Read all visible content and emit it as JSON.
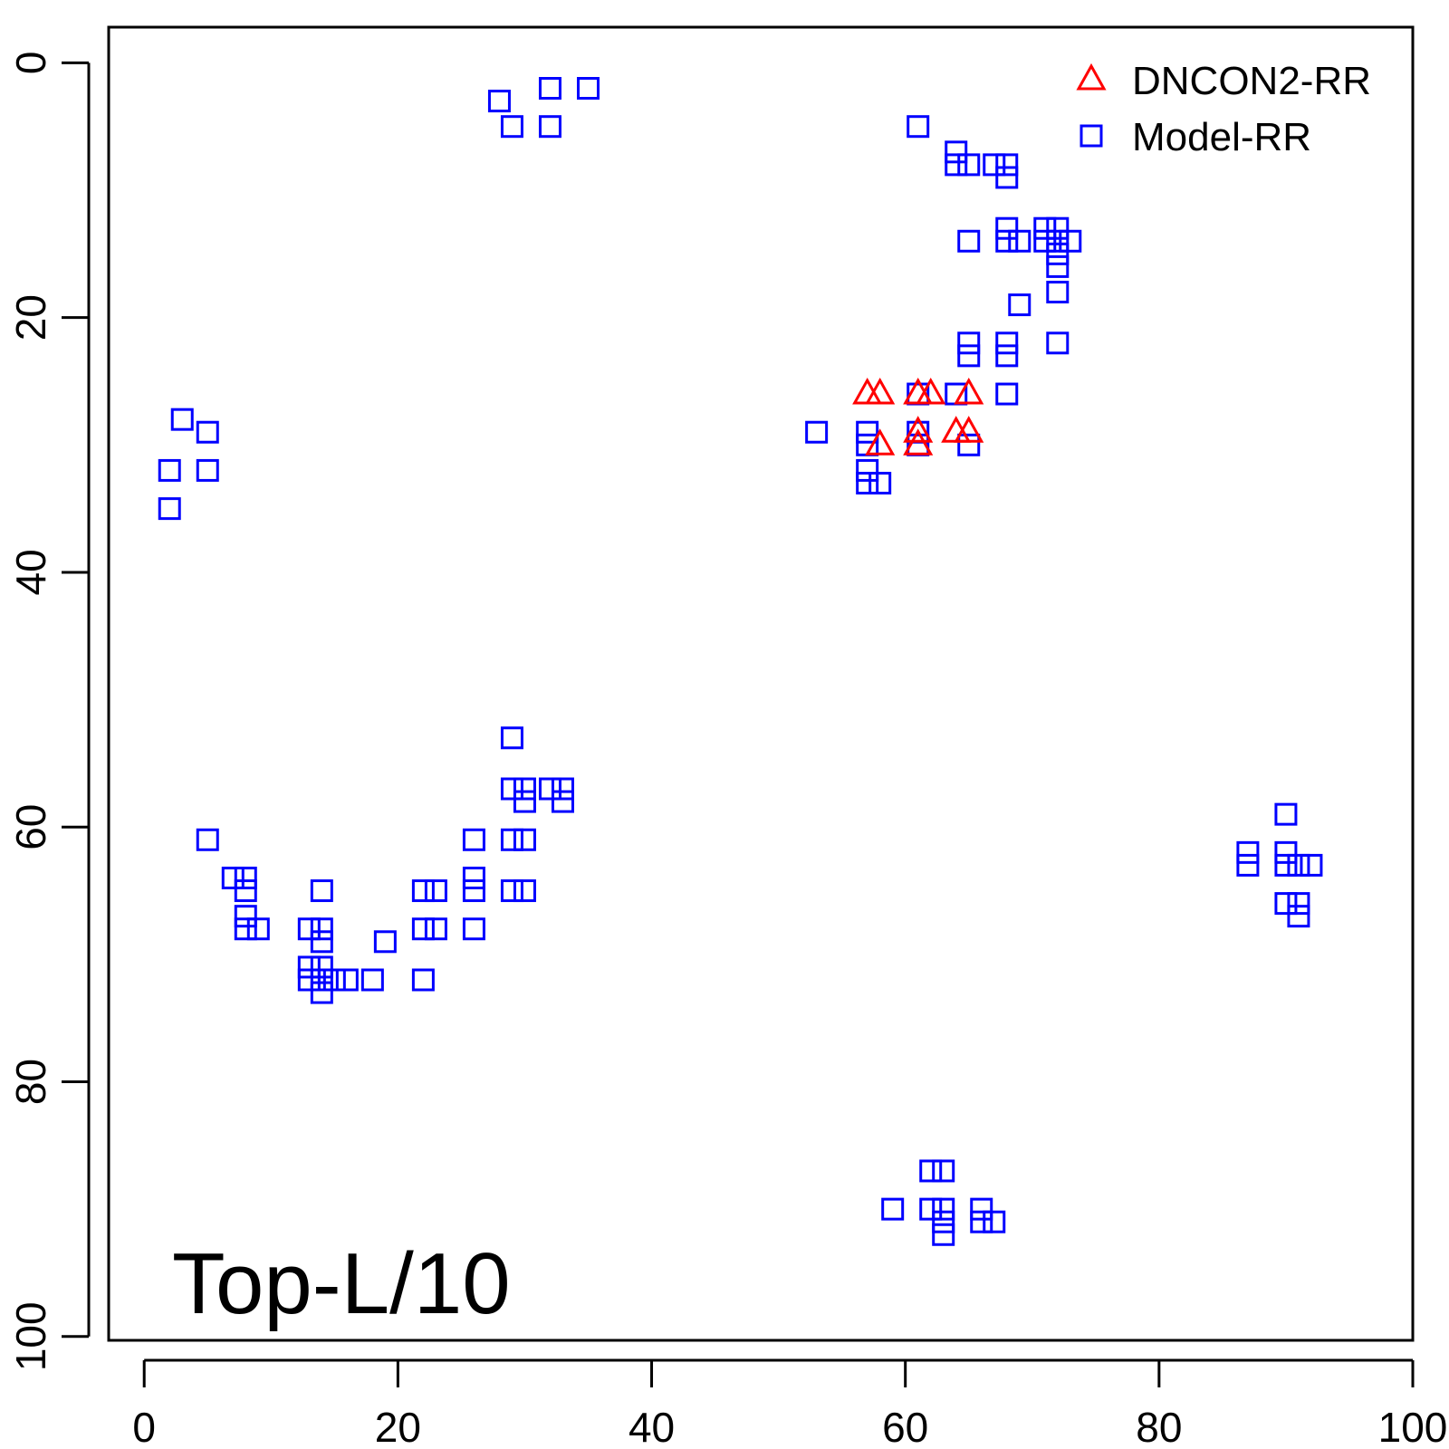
{
  "chart_data": {
    "type": "scatter",
    "title": "",
    "xlabel": "",
    "ylabel": "",
    "annotation": "Top-L/10",
    "xlim": [
      -2.8,
      100
    ],
    "ylim": [
      100.3,
      -2.8
    ],
    "y_reversed": true,
    "x_ticks": [
      "0",
      "20",
      "40",
      "60",
      "80",
      "100"
    ],
    "y_ticks": [
      "0",
      "20",
      "40",
      "60",
      "80",
      "100"
    ],
    "grid": false,
    "legend_position": "top-right",
    "series": [
      {
        "name": "DNCON2-RR",
        "marker": "triangle",
        "color": "#ff0000",
        "points": [
          [
            57,
            26
          ],
          [
            58,
            26
          ],
          [
            61,
            26
          ],
          [
            62,
            26
          ],
          [
            65,
            26
          ],
          [
            58,
            30
          ],
          [
            61,
            29
          ],
          [
            61,
            30
          ],
          [
            64,
            29
          ],
          [
            65,
            29
          ]
        ]
      },
      {
        "name": "Model-RR",
        "marker": "square",
        "color": "#0000ff",
        "points": [
          [
            28,
            3
          ],
          [
            29,
            5
          ],
          [
            32,
            2
          ],
          [
            32,
            5
          ],
          [
            35,
            2
          ],
          [
            3,
            28
          ],
          [
            5,
            29
          ],
          [
            2,
            32
          ],
          [
            5,
            32
          ],
          [
            2,
            35
          ],
          [
            61,
            5
          ],
          [
            64,
            7
          ],
          [
            64,
            8
          ],
          [
            65,
            8
          ],
          [
            67,
            8
          ],
          [
            68,
            8
          ],
          [
            68,
            9
          ],
          [
            65,
            14
          ],
          [
            68,
            13
          ],
          [
            68,
            14
          ],
          [
            69,
            14
          ],
          [
            71,
            13
          ],
          [
            71,
            14
          ],
          [
            72,
            13
          ],
          [
            72,
            14
          ],
          [
            73,
            14
          ],
          [
            72,
            15
          ],
          [
            72,
            16
          ],
          [
            72,
            18
          ],
          [
            69,
            19
          ],
          [
            65,
            22
          ],
          [
            65,
            23
          ],
          [
            68,
            22
          ],
          [
            68,
            23
          ],
          [
            72,
            22
          ],
          [
            64,
            26
          ],
          [
            68,
            26
          ],
          [
            61,
            26
          ],
          [
            53,
            29
          ],
          [
            57,
            29
          ],
          [
            57,
            30
          ],
          [
            61,
            29
          ],
          [
            61,
            30
          ],
          [
            65,
            30
          ],
          [
            57,
            32
          ],
          [
            57,
            33
          ],
          [
            58,
            33
          ],
          [
            29,
            53
          ],
          [
            29,
            57
          ],
          [
            30,
            57
          ],
          [
            30,
            58
          ],
          [
            32,
            57
          ],
          [
            33,
            57
          ],
          [
            33,
            58
          ],
          [
            5,
            61
          ],
          [
            26,
            61
          ],
          [
            29,
            61
          ],
          [
            30,
            61
          ],
          [
            7,
            64
          ],
          [
            8,
            64
          ],
          [
            8,
            65
          ],
          [
            26,
            64
          ],
          [
            26,
            65
          ],
          [
            14,
            65
          ],
          [
            22,
            65
          ],
          [
            23,
            65
          ],
          [
            29,
            65
          ],
          [
            30,
            65
          ],
          [
            8,
            67
          ],
          [
            8,
            68
          ],
          [
            9,
            68
          ],
          [
            13,
            68
          ],
          [
            14,
            68
          ],
          [
            14,
            69
          ],
          [
            22,
            68
          ],
          [
            23,
            68
          ],
          [
            26,
            68
          ],
          [
            19,
            69
          ],
          [
            13,
            71
          ],
          [
            14,
            71
          ],
          [
            13,
            72
          ],
          [
            14,
            72
          ],
          [
            15,
            72
          ],
          [
            16,
            72
          ],
          [
            18,
            72
          ],
          [
            22,
            72
          ],
          [
            14,
            73
          ],
          [
            90,
            59
          ],
          [
            87,
            62
          ],
          [
            87,
            63
          ],
          [
            90,
            62
          ],
          [
            90,
            63
          ],
          [
            91,
            63
          ],
          [
            92,
            63
          ],
          [
            90,
            66
          ],
          [
            91,
            66
          ],
          [
            91,
            67
          ],
          [
            62,
            87
          ],
          [
            63,
            87
          ],
          [
            59,
            90
          ],
          [
            62,
            90
          ],
          [
            63,
            90
          ],
          [
            63,
            91
          ],
          [
            63,
            92
          ],
          [
            66,
            90
          ],
          [
            66,
            91
          ],
          [
            67,
            91
          ]
        ]
      }
    ]
  }
}
